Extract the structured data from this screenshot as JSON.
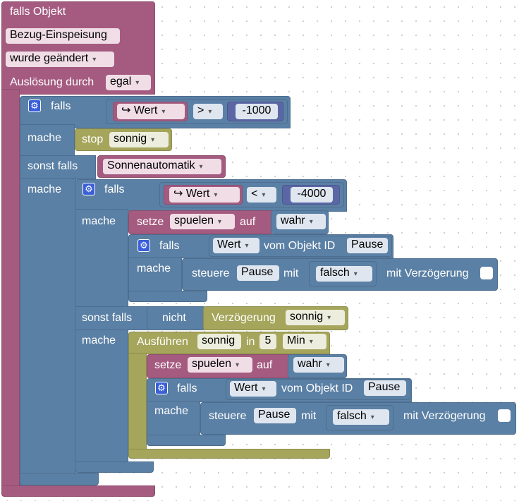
{
  "event": {
    "falls_objekt": "falls Objekt",
    "object_name": "Bezug-Einspeisung",
    "trigger_mode": "wurde geändert",
    "ausloesung_label": "Auslösung durch",
    "ausloesung_value": "egal"
  },
  "labels": {
    "falls": "falls",
    "mache": "mache",
    "sonst_falls": "sonst falls",
    "stop": "stop",
    "setze": "setze",
    "auf": "auf",
    "vom_objekt_id": "vom Objekt ID",
    "steuere": "steuere",
    "mit": "mit",
    "mit_verzoegerung": "mit Verzögerung",
    "nicht": "nicht",
    "verzoegerung": "Verzögerung",
    "ausfuehren": "Ausführen",
    "in": "in"
  },
  "values": {
    "wert_arrow": "↪ Wert",
    "wert": "Wert",
    "op_gt": ">",
    "op_lt": "<",
    "num_1000": "-1000",
    "num_4000": "-4000",
    "sonnig": "sonnig",
    "sonnenautomatik": "Sonnenautomatik",
    "spuelen": "spuelen",
    "wahr": "wahr",
    "pause": "Pause",
    "falsch": "falsch",
    "delay": "5",
    "unit": "Min"
  },
  "icons": {
    "gear": "gear-icon",
    "dropdown": "▾"
  },
  "colors": {
    "event": "#a55b80",
    "control": "#5b80a5",
    "timer": "#a5a55b",
    "number": "#5b67a5",
    "gear": "#3a5fd8"
  }
}
